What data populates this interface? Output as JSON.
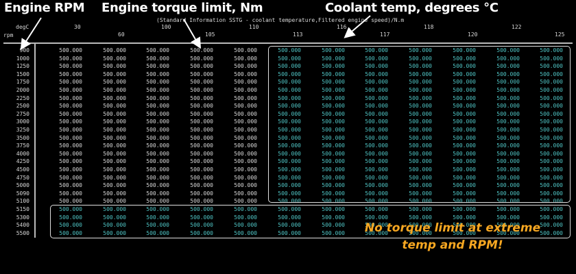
{
  "callouts": {
    "engine_rpm": "Engine RPM",
    "torque_limit": "Engine torque limit, Nm",
    "coolant_temp": "Coolant temp, degrees °C"
  },
  "table": {
    "title": "(Standard Information SSTG - coolant temperature,Filtered engine speed)/N.m",
    "corner_top": "degC",
    "corner_bottom": "rpm",
    "columns": [
      "30",
      "60",
      "100",
      "105",
      "110",
      "113",
      "116",
      "117",
      "118",
      "120",
      "122",
      "125"
    ],
    "rows": [
      {
        "rpm": "900",
        "values": [
          "500.000",
          "500.000",
          "500.000",
          "500.000",
          "500.000",
          "500.000",
          "500.000",
          "500.000",
          "500.000",
          "500.000",
          "500.000",
          "500.000"
        ]
      },
      {
        "rpm": "1000",
        "values": [
          "500.000",
          "500.000",
          "500.000",
          "500.000",
          "500.000",
          "500.000",
          "500.000",
          "500.000",
          "500.000",
          "500.000",
          "500.000",
          "500.000"
        ]
      },
      {
        "rpm": "1250",
        "values": [
          "500.000",
          "500.000",
          "500.000",
          "500.000",
          "500.000",
          "500.000",
          "500.000",
          "500.000",
          "500.000",
          "500.000",
          "500.000",
          "500.000"
        ]
      },
      {
        "rpm": "1500",
        "values": [
          "500.000",
          "500.000",
          "500.000",
          "500.000",
          "500.000",
          "500.000",
          "500.000",
          "500.000",
          "500.000",
          "500.000",
          "500.000",
          "500.000"
        ]
      },
      {
        "rpm": "1750",
        "values": [
          "500.000",
          "500.000",
          "500.000",
          "500.000",
          "500.000",
          "500.000",
          "500.000",
          "500.000",
          "500.000",
          "500.000",
          "500.000",
          "500.000"
        ]
      },
      {
        "rpm": "2000",
        "values": [
          "500.000",
          "500.000",
          "500.000",
          "500.000",
          "500.000",
          "500.000",
          "500.000",
          "500.000",
          "500.000",
          "500.000",
          "500.000",
          "500.000"
        ]
      },
      {
        "rpm": "2250",
        "values": [
          "500.000",
          "500.000",
          "500.000",
          "500.000",
          "500.000",
          "500.000",
          "500.000",
          "500.000",
          "500.000",
          "500.000",
          "500.000",
          "500.000"
        ]
      },
      {
        "rpm": "2500",
        "values": [
          "500.000",
          "500.000",
          "500.000",
          "500.000",
          "500.000",
          "500.000",
          "500.000",
          "500.000",
          "500.000",
          "500.000",
          "500.000",
          "500.000"
        ]
      },
      {
        "rpm": "2750",
        "values": [
          "500.000",
          "500.000",
          "500.000",
          "500.000",
          "500.000",
          "500.000",
          "500.000",
          "500.000",
          "500.000",
          "500.000",
          "500.000",
          "500.000"
        ]
      },
      {
        "rpm": "3000",
        "values": [
          "500.000",
          "500.000",
          "500.000",
          "500.000",
          "500.000",
          "500.000",
          "500.000",
          "500.000",
          "500.000",
          "500.000",
          "500.000",
          "500.000"
        ]
      },
      {
        "rpm": "3250",
        "values": [
          "500.000",
          "500.000",
          "500.000",
          "500.000",
          "500.000",
          "500.000",
          "500.000",
          "500.000",
          "500.000",
          "500.000",
          "500.000",
          "500.000"
        ]
      },
      {
        "rpm": "3500",
        "values": [
          "500.000",
          "500.000",
          "500.000",
          "500.000",
          "500.000",
          "500.000",
          "500.000",
          "500.000",
          "500.000",
          "500.000",
          "500.000",
          "500.000"
        ]
      },
      {
        "rpm": "3750",
        "values": [
          "500.000",
          "500.000",
          "500.000",
          "500.000",
          "500.000",
          "500.000",
          "500.000",
          "500.000",
          "500.000",
          "500.000",
          "500.000",
          "500.000"
        ]
      },
      {
        "rpm": "4000",
        "values": [
          "500.000",
          "500.000",
          "500.000",
          "500.000",
          "500.000",
          "500.000",
          "500.000",
          "500.000",
          "500.000",
          "500.000",
          "500.000",
          "500.000"
        ]
      },
      {
        "rpm": "4250",
        "values": [
          "500.000",
          "500.000",
          "500.000",
          "500.000",
          "500.000",
          "500.000",
          "500.000",
          "500.000",
          "500.000",
          "500.000",
          "500.000",
          "500.000"
        ]
      },
      {
        "rpm": "4500",
        "values": [
          "500.000",
          "500.000",
          "500.000",
          "500.000",
          "500.000",
          "500.000",
          "500.000",
          "500.000",
          "500.000",
          "500.000",
          "500.000",
          "500.000"
        ]
      },
      {
        "rpm": "4750",
        "values": [
          "500.000",
          "500.000",
          "500.000",
          "500.000",
          "500.000",
          "500.000",
          "500.000",
          "500.000",
          "500.000",
          "500.000",
          "500.000",
          "500.000"
        ]
      },
      {
        "rpm": "5000",
        "values": [
          "500.000",
          "500.000",
          "500.000",
          "500.000",
          "500.000",
          "500.000",
          "500.000",
          "500.000",
          "500.000",
          "500.000",
          "500.000",
          "500.000"
        ]
      },
      {
        "rpm": "5090",
        "values": [
          "500.000",
          "500.000",
          "500.000",
          "500.000",
          "500.000",
          "500.000",
          "500.000",
          "500.000",
          "500.000",
          "500.000",
          "500.000",
          "500.000"
        ]
      },
      {
        "rpm": "5100",
        "values": [
          "500.000",
          "500.000",
          "500.000",
          "500.000",
          "500.000",
          "500.000",
          "500.000",
          "500.000",
          "500.000",
          "500.000",
          "500.000",
          "500.000"
        ]
      },
      {
        "rpm": "5150",
        "values": [
          "500.000",
          "500.000",
          "500.000",
          "500.000",
          "500.000",
          "500.000",
          "500.000",
          "500.000",
          "500.000",
          "500.000",
          "500.000",
          "500.000"
        ]
      },
      {
        "rpm": "5300",
        "values": [
          "500.000",
          "500.000",
          "500.000",
          "500.000",
          "500.000",
          "500.000",
          "500.000",
          "500.000",
          "500.000",
          "500.000",
          "500.000",
          "500.000"
        ]
      },
      {
        "rpm": "5400",
        "values": [
          "500.000",
          "500.000",
          "500.000",
          "500.000",
          "500.000",
          "500.000",
          "500.000",
          "500.000",
          "500.000",
          "500.000",
          "500.000",
          "500.000"
        ]
      },
      {
        "rpm": "5500",
        "values": [
          "500.000",
          "500.000",
          "500.000",
          "500.000",
          "500.000",
          "500.000",
          "500.000",
          "500.000",
          "500.000",
          "500.000",
          "500.000",
          "500.000"
        ]
      }
    ]
  },
  "note": {
    "line1": "No torque limit at extreme",
    "line2": "temp and RPM!"
  },
  "colors": {
    "normal_value": "#d6d6d6",
    "highlight_value": "#4fc3c3",
    "note": "#f7a721",
    "background": "#000000"
  },
  "icons": [
    "arrow-icon"
  ]
}
